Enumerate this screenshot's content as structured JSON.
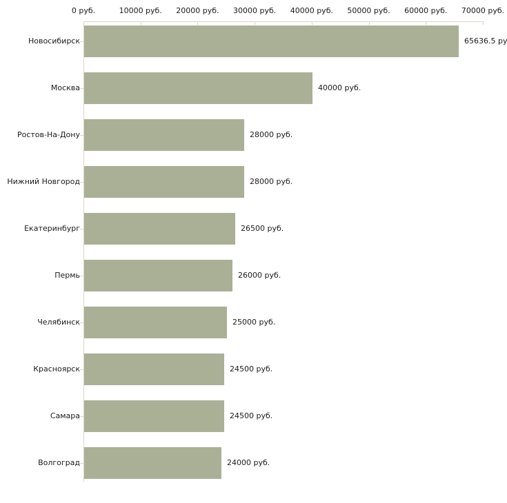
{
  "chart_data": {
    "type": "bar",
    "orientation": "horizontal",
    "title": "",
    "categories": [
      "Новосибирск",
      "Москва",
      "Ростов-На-Дону",
      "Нижний Новгород",
      "Екатеринбург",
      "Пермь",
      "Челябинск",
      "Красноярск",
      "Самара",
      "Волгоград"
    ],
    "values": [
      65636.5,
      40000,
      28000,
      28000,
      26500,
      26000,
      25000,
      24500,
      24500,
      24000
    ],
    "value_labels": [
      "65636.5 ру",
      "40000 руб.",
      "28000 руб.",
      "28000 руб.",
      "26500 руб.",
      "26000 руб.",
      "25000 руб.",
      "24500 руб.",
      "24500 руб.",
      "24000 руб."
    ],
    "unit": "руб.",
    "x_axis": {
      "position": "top",
      "min": 0,
      "max": 70000,
      "tick_values": [
        0,
        10000,
        20000,
        30000,
        40000,
        50000,
        60000,
        70000
      ],
      "tick_labels": [
        "0 руб.",
        "10000 руб.",
        "20000 руб.",
        "30000 руб.",
        "40000 руб.",
        "50000 руб.",
        "60000 руб.",
        "70000 руб."
      ]
    },
    "grid": false,
    "legend": false,
    "colors": {
      "bar": "#aab096",
      "axis": "#d6d6c6",
      "text": "#1a1a1a",
      "background": "#ffffff"
    }
  }
}
